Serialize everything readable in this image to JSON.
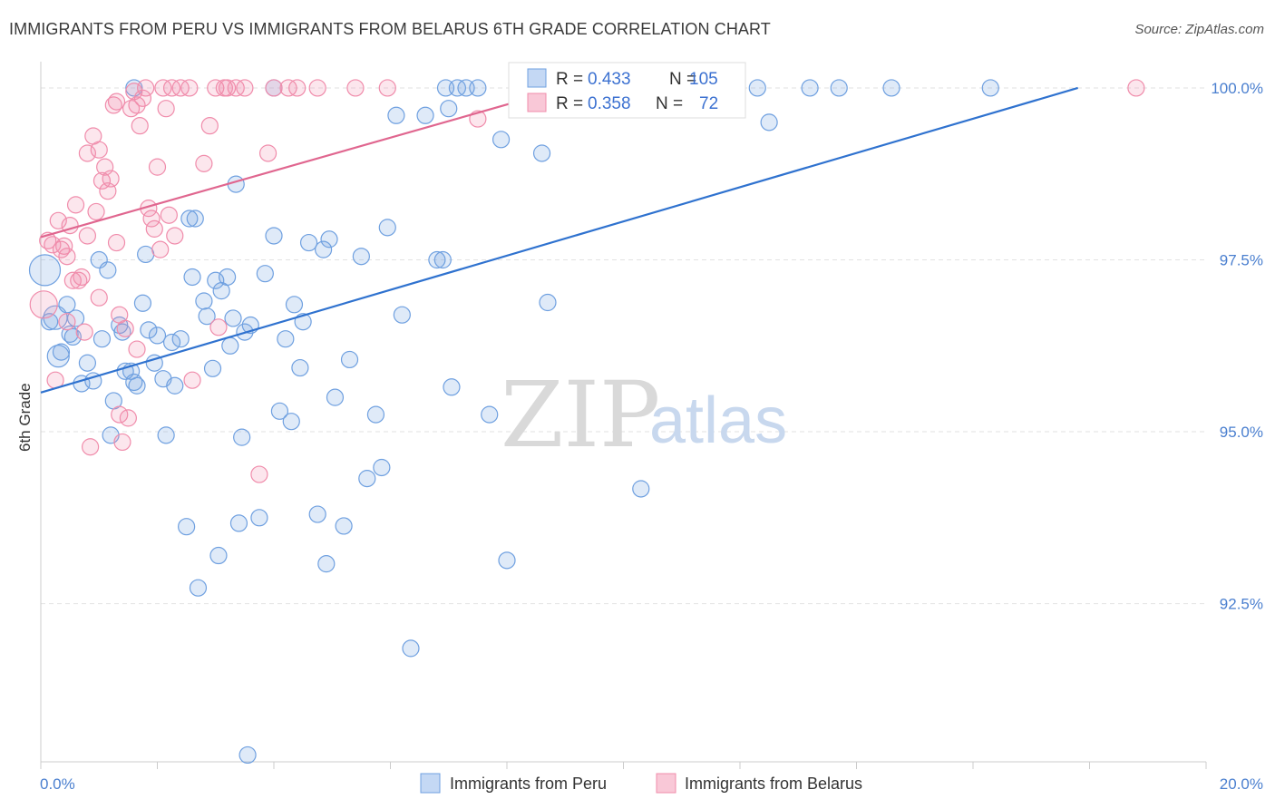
{
  "header": {
    "title": "IMMIGRANTS FROM PERU VS IMMIGRANTS FROM BELARUS 6TH GRADE CORRELATION CHART",
    "source": "Source: ZipAtlas.com"
  },
  "watermark": {
    "zip": "ZIP",
    "atlas": "atlas"
  },
  "legend_box": {
    "rows": [
      {
        "r_label": "R = ",
        "r_value": "0.433",
        "n_label": "N = ",
        "n_value": "105",
        "color": "#6fa0e0"
      },
      {
        "r_label": "R = ",
        "r_value": "0.358",
        "n_label": "N = ",
        "n_value": "72",
        "color": "#f08cab"
      }
    ]
  },
  "bottom_legend": [
    {
      "label": "Immigrants from Peru",
      "color": "#6fa0e0"
    },
    {
      "label": "Immigrants from Belarus",
      "color": "#f08cab"
    }
  ],
  "chart_data": {
    "type": "scatter",
    "title": "IMMIGRANTS FROM PERU VS IMMIGRANTS FROM BELARUS 6TH GRADE CORRELATION CHART",
    "xlabel": "",
    "ylabel": "6th Grade",
    "xlim": [
      0,
      20
    ],
    "ylim": [
      90.2,
      100.25
    ],
    "x_tick_labels": [
      "0.0%",
      "20.0%"
    ],
    "y_ticks": [
      92.5,
      95.0,
      97.5,
      100.0
    ],
    "y_tick_labels": [
      "92.5%",
      "95.0%",
      "97.5%",
      "100.0%"
    ],
    "grid": true,
    "legend_position": "top-center",
    "series": [
      {
        "name": "Immigrants from Peru",
        "color": "#6fa0e0",
        "trend": {
          "x": [
            0.0,
            17.8
          ],
          "y": [
            95.57,
            100.0
          ]
        },
        "points": [
          [
            0.07,
            97.35
          ],
          [
            0.25,
            96.66
          ],
          [
            0.3,
            96.1
          ],
          [
            0.35,
            96.16
          ],
          [
            0.45,
            96.85
          ],
          [
            0.5,
            96.42
          ],
          [
            0.55,
            96.38
          ],
          [
            0.7,
            95.7
          ],
          [
            0.8,
            96.0
          ],
          [
            0.9,
            95.74
          ],
          [
            1.0,
            97.5
          ],
          [
            1.05,
            96.35
          ],
          [
            1.15,
            97.35
          ],
          [
            1.25,
            95.45
          ],
          [
            1.2,
            94.95
          ],
          [
            1.35,
            96.55
          ],
          [
            1.4,
            96.45
          ],
          [
            1.45,
            95.88
          ],
          [
            1.55,
            95.88
          ],
          [
            1.6,
            95.72
          ],
          [
            1.65,
            95.67
          ],
          [
            1.75,
            96.87
          ],
          [
            1.8,
            97.58
          ],
          [
            1.85,
            96.48
          ],
          [
            1.95,
            96.0
          ],
          [
            2.0,
            96.4
          ],
          [
            2.1,
            95.77
          ],
          [
            2.15,
            94.95
          ],
          [
            2.25,
            96.3
          ],
          [
            2.3,
            95.67
          ],
          [
            2.4,
            96.35
          ],
          [
            2.5,
            93.62
          ],
          [
            2.55,
            98.1
          ],
          [
            2.6,
            97.25
          ],
          [
            2.65,
            98.1
          ],
          [
            2.7,
            92.73
          ],
          [
            2.8,
            96.9
          ],
          [
            2.85,
            96.68
          ],
          [
            2.95,
            95.92
          ],
          [
            3.0,
            97.2
          ],
          [
            3.05,
            93.2
          ],
          [
            3.1,
            97.05
          ],
          [
            3.2,
            97.25
          ],
          [
            3.25,
            96.25
          ],
          [
            3.3,
            96.65
          ],
          [
            3.35,
            98.6
          ],
          [
            3.4,
            93.67
          ],
          [
            3.45,
            94.92
          ],
          [
            3.5,
            96.45
          ],
          [
            3.55,
            90.3
          ],
          [
            3.6,
            96.55
          ],
          [
            3.75,
            93.75
          ],
          [
            3.85,
            97.3
          ],
          [
            4.0,
            97.85
          ],
          [
            4.1,
            95.3
          ],
          [
            4.2,
            96.35
          ],
          [
            4.3,
            95.15
          ],
          [
            4.35,
            96.85
          ],
          [
            4.45,
            95.93
          ],
          [
            4.5,
            96.6
          ],
          [
            4.6,
            97.75
          ],
          [
            4.75,
            93.8
          ],
          [
            4.85,
            97.65
          ],
          [
            4.9,
            93.08
          ],
          [
            4.95,
            97.8
          ],
          [
            5.05,
            95.5
          ],
          [
            5.2,
            93.63
          ],
          [
            5.3,
            96.05
          ],
          [
            5.5,
            97.55
          ],
          [
            5.6,
            94.32
          ],
          [
            5.75,
            95.25
          ],
          [
            5.85,
            94.48
          ],
          [
            5.95,
            97.97
          ],
          [
            6.1,
            99.6
          ],
          [
            6.2,
            96.7
          ],
          [
            6.35,
            91.85
          ],
          [
            6.6,
            99.6
          ],
          [
            6.8,
            97.5
          ],
          [
            6.9,
            97.5
          ],
          [
            6.95,
            100.0
          ],
          [
            7.0,
            99.7
          ],
          [
            7.05,
            95.65
          ],
          [
            7.15,
            100.0
          ],
          [
            7.3,
            100.0
          ],
          [
            7.5,
            100.0
          ],
          [
            7.7,
            95.25
          ],
          [
            7.9,
            99.25
          ],
          [
            8.0,
            93.13
          ],
          [
            8.2,
            100.0
          ],
          [
            8.6,
            99.05
          ],
          [
            8.7,
            96.88
          ],
          [
            8.8,
            100.0
          ],
          [
            9.1,
            100.0
          ],
          [
            10.3,
            94.17
          ],
          [
            11.0,
            100.0
          ],
          [
            12.3,
            100.0
          ],
          [
            12.5,
            99.5
          ],
          [
            13.2,
            100.0
          ],
          [
            13.7,
            100.0
          ],
          [
            14.6,
            100.0
          ],
          [
            16.3,
            100.0
          ],
          [
            0.15,
            96.6
          ],
          [
            0.6,
            96.65
          ],
          [
            4.0,
            100.0
          ],
          [
            1.6,
            100.0
          ]
        ],
        "sizes": "large markers at x=0.07 (y 97.35), x=0.25 (y 96.66), x=0.3 (y 96.1)"
      },
      {
        "name": "Immigrants from Belarus",
        "color": "#f08cab",
        "trend": {
          "x": [
            0.0,
            9.0
          ],
          "y": [
            97.83,
            100.0
          ]
        },
        "points": [
          [
            0.05,
            96.85
          ],
          [
            0.12,
            97.78
          ],
          [
            0.2,
            97.72
          ],
          [
            0.25,
            95.75
          ],
          [
            0.3,
            98.07
          ],
          [
            0.35,
            97.65
          ],
          [
            0.4,
            97.7
          ],
          [
            0.45,
            97.55
          ],
          [
            0.45,
            96.6
          ],
          [
            0.5,
            98.0
          ],
          [
            0.55,
            97.2
          ],
          [
            0.6,
            98.3
          ],
          [
            0.65,
            97.2
          ],
          [
            0.7,
            97.25
          ],
          [
            0.75,
            96.45
          ],
          [
            0.8,
            97.85
          ],
          [
            0.8,
            99.05
          ],
          [
            0.85,
            94.78
          ],
          [
            0.9,
            99.3
          ],
          [
            0.95,
            98.2
          ],
          [
            1.0,
            96.95
          ],
          [
            1.0,
            99.1
          ],
          [
            1.05,
            98.65
          ],
          [
            1.1,
            98.85
          ],
          [
            1.15,
            98.5
          ],
          [
            1.2,
            98.68
          ],
          [
            1.25,
            99.75
          ],
          [
            1.3,
            99.8
          ],
          [
            1.3,
            97.75
          ],
          [
            1.35,
            96.7
          ],
          [
            1.35,
            95.25
          ],
          [
            1.4,
            94.85
          ],
          [
            1.45,
            96.5
          ],
          [
            1.5,
            95.2
          ],
          [
            1.55,
            99.7
          ],
          [
            1.6,
            99.95
          ],
          [
            1.65,
            99.75
          ],
          [
            1.65,
            96.2
          ],
          [
            1.7,
            99.45
          ],
          [
            1.75,
            99.85
          ],
          [
            1.8,
            100.0
          ],
          [
            1.85,
            98.25
          ],
          [
            1.9,
            98.1
          ],
          [
            1.95,
            97.95
          ],
          [
            2.0,
            98.85
          ],
          [
            2.05,
            97.65
          ],
          [
            2.1,
            100.0
          ],
          [
            2.15,
            99.7
          ],
          [
            2.2,
            98.15
          ],
          [
            2.3,
            97.85
          ],
          [
            2.4,
            100.0
          ],
          [
            2.55,
            100.0
          ],
          [
            2.6,
            95.75
          ],
          [
            2.8,
            98.9
          ],
          [
            2.9,
            99.45
          ],
          [
            3.0,
            100.0
          ],
          [
            3.05,
            96.52
          ],
          [
            3.2,
            100.0
          ],
          [
            3.35,
            100.0
          ],
          [
            3.5,
            100.0
          ],
          [
            3.75,
            94.38
          ],
          [
            3.9,
            99.05
          ],
          [
            4.0,
            100.0
          ],
          [
            4.25,
            100.0
          ],
          [
            4.4,
            100.0
          ],
          [
            4.75,
            100.0
          ],
          [
            5.4,
            100.0
          ],
          [
            5.95,
            100.0
          ],
          [
            7.5,
            99.55
          ],
          [
            18.8,
            100.0
          ],
          [
            3.15,
            100.0
          ],
          [
            2.25,
            100.0
          ]
        ],
        "sizes": "large marker at x=0.05 (y 96.85)"
      }
    ]
  }
}
